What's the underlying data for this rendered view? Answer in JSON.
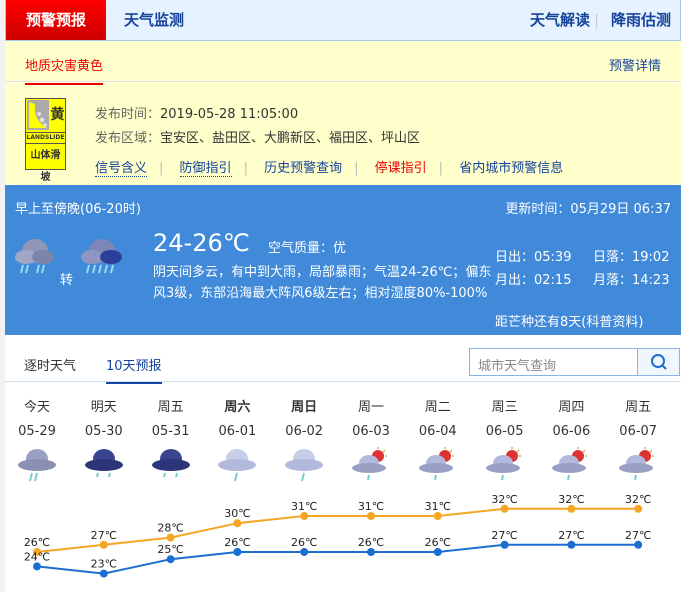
{
  "nav": {
    "active": "预警预报",
    "monitor": "天气监测",
    "interpret": "天气解读",
    "rain": "降雨估测"
  },
  "warning": {
    "tab": "地质灾害黄色",
    "details": "预警详情",
    "signal": {
      "color_word": "黄",
      "en": "LANDSLIDE",
      "cn": "山体滑坡",
      "color": "#ffff00"
    },
    "time_label": "发布时间：",
    "time": "2019-05-28 11:05:00",
    "area_label": "发布区域：",
    "area": "宝安区、盐田区、大鹏新区、福田区、坪山区",
    "links": [
      "信号含义",
      "防御指引",
      "历史预警查询",
      "停课指引",
      "省内城市预警信息"
    ]
  },
  "today": {
    "period": "早上至傍晚(06-20时)",
    "updated": "更新时间：05月29日 06:37",
    "icon_from": "heavy-rain-icon",
    "transition": "转",
    "icon_to": "rainstorm-icon",
    "temp": "24-26℃",
    "aqi": "空气质量：优",
    "desc": "阴天间多云，有中到大雨，局部暴雨；气温24-26℃；偏东风3级，东部沿海最大阵风6级左右；相对湿度80%-100%",
    "sunrise": "日出：05:39",
    "sunset": "日落：19:02",
    "moonrise": "月出：02:15",
    "moonset": "月落：14:23",
    "term": "距芒种还有8天(科普资料)"
  },
  "tabs": {
    "hourly": "逐时天气",
    "tenday": "10天预报",
    "active": "10天预报"
  },
  "search": {
    "placeholder": "城市天气查询"
  },
  "forecast": [
    {
      "day": "今天",
      "date": "05-29",
      "icon": "heavy-rain",
      "bold": false
    },
    {
      "day": "明天",
      "date": "05-30",
      "icon": "dark-rain",
      "bold": false
    },
    {
      "day": "周五",
      "date": "05-31",
      "icon": "dark-rain",
      "bold": false
    },
    {
      "day": "周六",
      "date": "06-01",
      "icon": "light-rain",
      "bold": true
    },
    {
      "day": "周日",
      "date": "06-02",
      "icon": "light-rain",
      "bold": true
    },
    {
      "day": "周一",
      "date": "06-03",
      "icon": "sun-shower",
      "bold": false
    },
    {
      "day": "周二",
      "date": "06-04",
      "icon": "sun-shower",
      "bold": false
    },
    {
      "day": "周三",
      "date": "06-05",
      "icon": "sun-shower",
      "bold": false
    },
    {
      "day": "周四",
      "date": "06-06",
      "icon": "sun-shower",
      "bold": false
    },
    {
      "day": "周五",
      "date": "06-07",
      "icon": "sun-shower",
      "bold": false
    }
  ],
  "chart_data": {
    "type": "line",
    "categories": [
      "05-29",
      "05-30",
      "05-31",
      "06-01",
      "06-02",
      "06-03",
      "06-04",
      "06-05",
      "06-06",
      "06-07"
    ],
    "unit": "℃",
    "series": [
      {
        "values": [
          26,
          27,
          28,
          30,
          31,
          31,
          31,
          32,
          32,
          32
        ],
        "color": "#f5a623"
      },
      {
        "values": [
          24,
          23,
          25,
          26,
          26,
          26,
          26,
          27,
          27,
          27
        ],
        "color": "#1a6fd0"
      }
    ]
  }
}
